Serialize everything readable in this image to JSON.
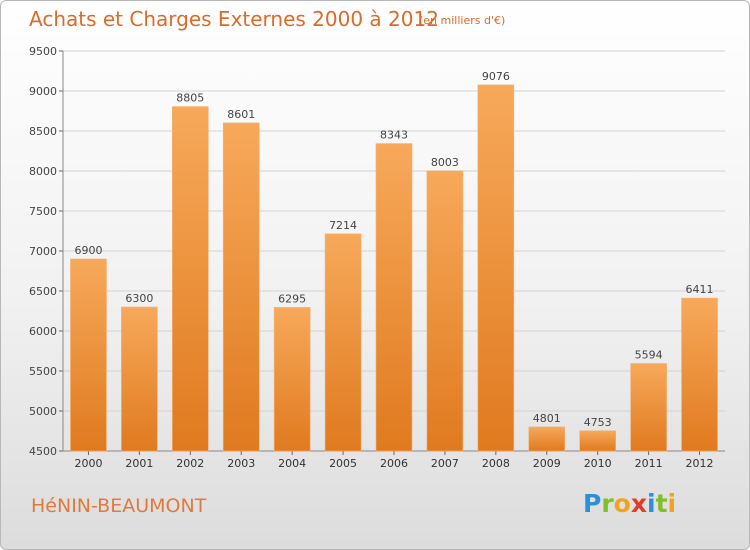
{
  "header": {
    "title": "Achats et Charges Externes 2000 à 2012",
    "subtitle": "(en milliers d'€)"
  },
  "footer": {
    "location": "HéNIN-BEAUMONT",
    "brand_letters": [
      "P",
      "r",
      "o",
      "x",
      "i",
      "t",
      "i"
    ],
    "brand_colors": [
      "#2e8fd6",
      "#7fbf2a",
      "#f2a21b",
      "#e23b2a",
      "#2e8fd6",
      "#7fbf2a",
      "#f2a21b"
    ]
  },
  "colors": {
    "bar_light": "#f7a95a",
    "bar_dark": "#e07a1f",
    "title": "#de6a28"
  },
  "chart_data": {
    "type": "bar",
    "title": "Achats et Charges Externes 2000 à 2012",
    "subtitle": "(en milliers d'€)",
    "xlabel": "",
    "ylabel": "",
    "categories": [
      "2000",
      "2001",
      "2002",
      "2003",
      "2004",
      "2005",
      "2006",
      "2007",
      "2008",
      "2009",
      "2010",
      "2011",
      "2012"
    ],
    "values": [
      6900,
      6300,
      8805,
      8601,
      6295,
      7214,
      8343,
      8003,
      9076,
      4801,
      4753,
      5594,
      6411
    ],
    "ylim": [
      4500,
      9500
    ],
    "yticks": [
      4500,
      5000,
      5500,
      6000,
      6500,
      7000,
      7500,
      8000,
      8500,
      9000,
      9500
    ],
    "grid": true,
    "legend": "none"
  }
}
